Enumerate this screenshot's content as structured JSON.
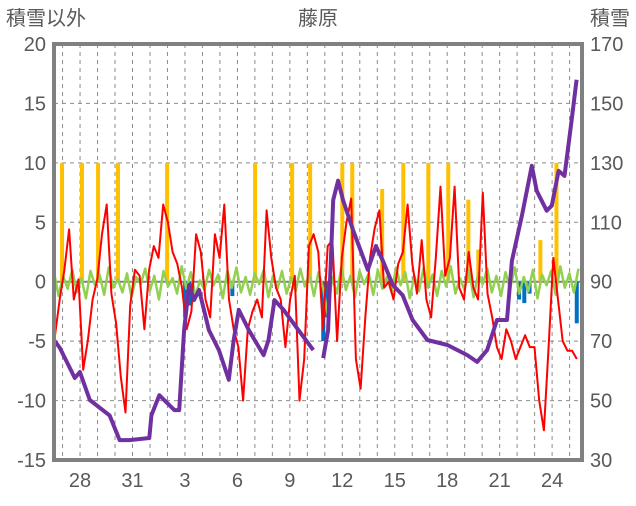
{
  "chart_data": {
    "type": "line",
    "title": "藤原",
    "ylabel_left": "積雪以外",
    "ylabel_right": "積雪",
    "ylim_left": [
      -15,
      20
    ],
    "ylim_right": [
      30,
      170
    ],
    "yticks_left": [
      "20",
      "15",
      "10",
      "5",
      "0",
      "-5",
      "-10",
      "-15"
    ],
    "yticks_right": [
      "170",
      "150",
      "130",
      "110",
      "90",
      "70",
      "50",
      "30"
    ],
    "xlim_days": [
      0,
      30.2
    ],
    "xticks": [
      {
        "label": "28",
        "day": 1.49
      },
      {
        "label": "31",
        "day": 4.49
      },
      {
        "label": "3",
        "day": 7.49
      },
      {
        "label": "6",
        "day": 10.49
      },
      {
        "label": "9",
        "day": 13.49
      },
      {
        "label": "12",
        "day": 16.49
      },
      {
        "label": "15",
        "day": 19.49
      },
      {
        "label": "18",
        "day": 22.49
      },
      {
        "label": "21",
        "day": 25.49
      },
      {
        "label": "24",
        "day": 28.49
      }
    ],
    "grid": "dashed",
    "colors": {
      "snow_depth": "#7030a0",
      "red": "#ff0000",
      "yellow": "#ffc000",
      "blue": "#0070c0",
      "green": "#92d050",
      "frame": "#808080"
    },
    "series": [
      {
        "name": "yellow-bars",
        "axis": "left",
        "kind": "bar",
        "points": [
          [
            0.46,
            10
          ],
          [
            1.6,
            10
          ],
          [
            2.52,
            10
          ],
          [
            3.66,
            10
          ],
          [
            6.47,
            10
          ],
          [
            11.5,
            10
          ],
          [
            13.62,
            10
          ],
          [
            14.65,
            10
          ],
          [
            16.49,
            10
          ],
          [
            17.06,
            10
          ],
          [
            18.77,
            7.8
          ],
          [
            19.98,
            10
          ],
          [
            21.41,
            10
          ],
          [
            22.55,
            10
          ],
          [
            23.7,
            6.9
          ],
          [
            24.27,
            2.7
          ],
          [
            27.82,
            3.5
          ],
          [
            28.74,
            10
          ]
        ]
      },
      {
        "name": "blue-bars",
        "axis": "left",
        "kind": "bar",
        "points": [
          [
            7.5,
            -3
          ],
          [
            7.8,
            -2
          ],
          [
            10.2,
            -1.2
          ],
          [
            15.4,
            -5
          ],
          [
            15.6,
            -3
          ],
          [
            26.6,
            -1.5
          ],
          [
            26.9,
            -1.8
          ],
          [
            27.2,
            -1
          ],
          [
            29.9,
            -3.5
          ]
        ]
      },
      {
        "name": "green-line",
        "axis": "left",
        "kind": "line",
        "x_start": 0,
        "x_end": 30,
        "values": [
          0.8,
          -1.2,
          0.5,
          -0.6,
          1.0,
          -0.9,
          0.3,
          -1.4,
          0.9,
          -0.3,
          0.6,
          -1.1,
          1.2,
          -0.5,
          0.2,
          -0.9,
          0.7,
          -1.3,
          0.4,
          -0.2,
          1.1,
          -0.8,
          0.5,
          -1.5,
          0.9,
          -0.4,
          0.3,
          -1.0,
          1.3,
          -0.6,
          0.8,
          -1.2,
          0.1,
          -0.7,
          1.0,
          -0.3,
          0.6,
          -1.4,
          0.9,
          -0.5,
          1.2,
          -0.9,
          0.4,
          -1.1,
          0.7,
          -0.2,
          1.0,
          -1.3,
          0.5,
          -0.6,
          0.9,
          -1.0,
          0.3,
          -0.8,
          1.1,
          -0.4,
          0.6,
          -1.2,
          0.8,
          -0.5,
          -2.8,
          0.4,
          -1.0,
          1.2,
          -0.7,
          0.5,
          -1.3,
          0.9,
          -0.2,
          0.7,
          -1.1,
          1.0,
          -0.6,
          0.4,
          -0.9,
          1.2,
          -0.3,
          0.8,
          -1.4,
          0.5,
          -0.8,
          1.1,
          -0.5,
          0.6,
          -1.2,
          0.9,
          -0.4,
          1.3,
          -1.0,
          0.3,
          -0.7,
          1.0,
          -1.3,
          0.7,
          -0.2,
          1.1,
          -0.9,
          0.5,
          -1.2,
          0.8,
          -0.6,
          1.2,
          -1.0,
          0.4,
          -0.8,
          1.0,
          -1.4,
          0.6,
          -0.3,
          0.9,
          -1.1,
          1.3,
          -0.5,
          0.7,
          -0.9,
          1.1
        ]
      },
      {
        "name": "red-line",
        "axis": "left",
        "kind": "line",
        "x_start": 0.06,
        "x_end": 29.9,
        "values": [
          -4.5,
          -1.5,
          1,
          4.4,
          -1.5,
          0.2,
          -7.4,
          -4.9,
          -1.5,
          0.2,
          4,
          6.5,
          -1,
          -3.5,
          -8,
          -11,
          -2,
          1,
          0.5,
          -4,
          1,
          3,
          2,
          6.5,
          5,
          2.5,
          1.5,
          -0.5,
          -4,
          -2.5,
          4,
          2.5,
          -1.5,
          -3,
          4,
          2,
          6.5,
          -1.5,
          -4,
          -5.5,
          -10,
          -4,
          -2.5,
          -1.5,
          -3,
          6,
          2,
          -0.5,
          -1.5,
          -5.5,
          -1.5,
          0.5,
          -10,
          -6.5,
          3,
          4,
          2.5,
          -4,
          3,
          3.5,
          -5,
          2,
          5,
          7,
          -6.5,
          -9,
          -3,
          2,
          4.5,
          6,
          -0.5,
          0,
          -1.5,
          1.5,
          2.5,
          6.5,
          1.5,
          -1,
          3.5,
          -1.5,
          -3,
          2,
          8,
          0.5,
          2,
          8,
          -0.5,
          -1.5,
          2.5,
          -0.5,
          -1.5,
          7.5,
          -1,
          -3,
          -5.5,
          -6.5,
          -4,
          -5,
          -6.5,
          -5.5,
          -4.5,
          -5.5,
          -5.5,
          -10,
          -12.5,
          -5.5,
          2,
          -1.5,
          -5,
          -5.8,
          -5.8,
          -6.5
        ]
      },
      {
        "name": "snow-depth",
        "axis": "right",
        "kind": "line",
        "points": [
          [
            0,
            70.4
          ],
          [
            0.34,
            67.7
          ],
          [
            1.19,
            57.6
          ],
          [
            1.48,
            59.6
          ],
          [
            2.05,
            50.2
          ],
          [
            3.18,
            45
          ],
          [
            3.75,
            36.7
          ],
          [
            4.32,
            36.7
          ],
          [
            5.45,
            37.4
          ],
          [
            5.57,
            45
          ],
          [
            6.02,
            51.8
          ],
          [
            6.88,
            46.8
          ],
          [
            7.16,
            46.8
          ],
          [
            7.44,
            73.7
          ],
          [
            7.73,
            88.9
          ],
          [
            8.01,
            83.8
          ],
          [
            8.3,
            87.2
          ],
          [
            8.86,
            73.7
          ],
          [
            9.43,
            67
          ],
          [
            10,
            57
          ],
          [
            10.28,
            70.4
          ],
          [
            10.57,
            80.5
          ],
          [
            11.14,
            73.7
          ],
          [
            11.99,
            65.3
          ],
          [
            12.27,
            70.4
          ],
          [
            12.61,
            83.8
          ],
          [
            13.13,
            80.5
          ],
          [
            13.98,
            73.7
          ],
          [
            14.83,
            67
          ],
          null,
          [
            15.4,
            64.3
          ],
          [
            15.68,
            73.7
          ],
          [
            15.97,
            117.5
          ],
          [
            16.25,
            124
          ],
          [
            16.53,
            117.5
          ],
          [
            17.1,
            107.4
          ],
          [
            17.95,
            94
          ],
          [
            18.41,
            102
          ],
          [
            18.81,
            97
          ],
          [
            19.38,
            88.9
          ],
          [
            19.94,
            85.5
          ],
          [
            20.51,
            77.1
          ],
          [
            21.36,
            70.4
          ],
          [
            22.5,
            68.7
          ],
          [
            23.64,
            65.3
          ],
          [
            24.2,
            63
          ],
          [
            24.77,
            67
          ],
          [
            25.34,
            77.1
          ],
          [
            25.91,
            77.1
          ],
          [
            26.19,
            97
          ],
          [
            26.76,
            112.2
          ],
          [
            27.33,
            129
          ],
          [
            27.61,
            120.6
          ],
          [
            28.18,
            113.9
          ],
          [
            28.47,
            115.6
          ],
          [
            28.86,
            127.3
          ],
          [
            29.2,
            125.6
          ],
          [
            29.6,
            144
          ],
          [
            29.89,
            158
          ]
        ]
      }
    ]
  }
}
